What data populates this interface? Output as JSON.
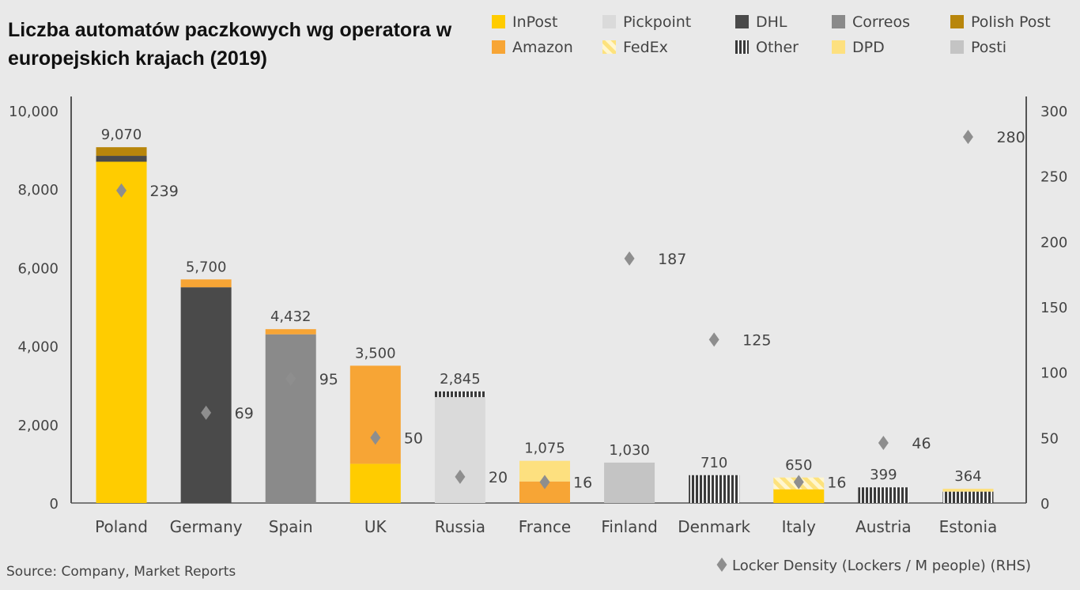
{
  "chart_data": {
    "type": "bar",
    "title": "Liczba automatów paczkowych wg operatora w europejskich krajach (2019)",
    "source": "Source: Company, Market Reports",
    "colors": {
      "InPost": "#ffcc00",
      "Amazon": "#f7a535",
      "Pickpoint": "#dadada",
      "FedEx": "#fde27d",
      "DHL": "#4a4a4a",
      "Other": "#444444",
      "Correos": "#8a8a8a",
      "DPD": "#fde07f",
      "Polish Post": "#b8860b",
      "Posti": "#c4c4c4",
      "density": "#8e8e8e"
    },
    "legend": {
      "placement": "top-right",
      "items": [
        {
          "name": "InPost",
          "pattern": "solid"
        },
        {
          "name": "Pickpoint",
          "pattern": "solid"
        },
        {
          "name": "DHL",
          "pattern": "solid"
        },
        {
          "name": "Correos",
          "pattern": "solid"
        },
        {
          "name": "Polish Post",
          "pattern": "solid"
        },
        {
          "name": "Amazon",
          "pattern": "solid"
        },
        {
          "name": "FedEx",
          "pattern": "diagonal"
        },
        {
          "name": "Other",
          "pattern": "vertical-stripes"
        },
        {
          "name": "DPD",
          "pattern": "solid"
        },
        {
          "name": "Posti",
          "pattern": "solid"
        }
      ],
      "density_label": "Locker Density (Lockers / M people) (RHS)"
    },
    "categories": [
      "Poland",
      "Germany",
      "Spain",
      "UK",
      "Russia",
      "France",
      "Finland",
      "Denmark",
      "Italy",
      "Austria",
      "Estonia"
    ],
    "totals": [
      "9,070",
      "5,700",
      "4,432",
      "3,500",
      "2,845",
      "1,075",
      "1,030",
      "710",
      "650",
      "399",
      "364"
    ],
    "stacks": [
      [
        {
          "s": "InPost",
          "v": 8700
        },
        {
          "s": "DHL",
          "v": 150
        },
        {
          "s": "Polish Post",
          "v": 220
        }
      ],
      [
        {
          "s": "DHL",
          "v": 5500
        },
        {
          "s": "Amazon",
          "v": 200
        }
      ],
      [
        {
          "s": "Correos",
          "v": 4300
        },
        {
          "s": "Amazon",
          "v": 132
        }
      ],
      [
        {
          "s": "InPost",
          "v": 1000
        },
        {
          "s": "Amazon",
          "v": 2500
        }
      ],
      [
        {
          "s": "Pickpoint",
          "v": 2700
        },
        {
          "s": "Other",
          "v": 145
        }
      ],
      [
        {
          "s": "Amazon",
          "v": 550
        },
        {
          "s": "DPD",
          "v": 525
        }
      ],
      [
        {
          "s": "Posti",
          "v": 1030
        }
      ],
      [
        {
          "s": "Other",
          "v": 710
        }
      ],
      [
        {
          "s": "InPost",
          "v": 350
        },
        {
          "s": "FedEx",
          "v": 300
        }
      ],
      [
        {
          "s": "Other",
          "v": 399
        }
      ],
      [
        {
          "s": "Other",
          "v": 290
        },
        {
          "s": "DPD",
          "v": 74
        }
      ]
    ],
    "density": [
      239,
      69,
      95,
      50,
      20,
      16,
      187,
      125,
      16,
      46,
      280
    ],
    "y_left": {
      "min": 0,
      "max": 10000,
      "ticks": [
        "0",
        "2,000",
        "4,000",
        "6,000",
        "8,000",
        "10,000"
      ],
      "tick_values": [
        0,
        2000,
        4000,
        6000,
        8000,
        10000
      ]
    },
    "y_right": {
      "min": 0,
      "max": 300,
      "ticks": [
        "0",
        "50",
        "100",
        "150",
        "200",
        "250",
        "300"
      ],
      "tick_values": [
        0,
        50,
        100,
        150,
        200,
        250,
        300
      ]
    },
    "grid": false
  }
}
